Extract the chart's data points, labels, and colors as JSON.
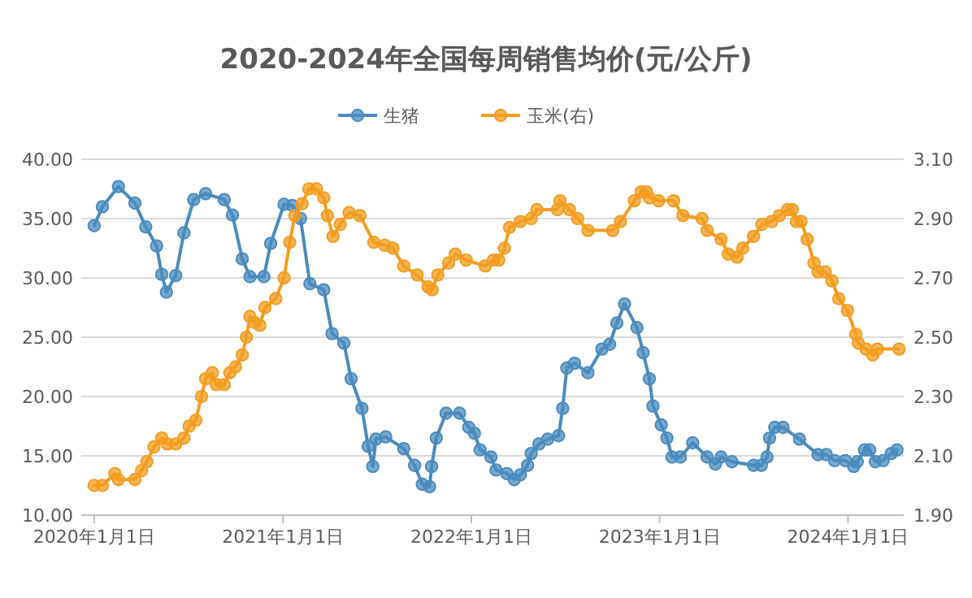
{
  "chart_data": {
    "type": "line",
    "title": "2020-2024年全国每周销售均价(元/公斤)",
    "xlim": [
      "2019-12-07",
      "2024-04-18"
    ],
    "xticks": [
      {
        "value": "2020-01-01",
        "label": "2020年1月1日"
      },
      {
        "value": "2021-01-01",
        "label": "2021年1月1日"
      },
      {
        "value": "2022-01-01",
        "label": "2022年1月1日"
      },
      {
        "value": "2023-01-01",
        "label": "2023年1月1日"
      },
      {
        "value": "2024-01-01",
        "label": "2024年1月1日"
      }
    ],
    "ylim": [
      10,
      40
    ],
    "yticks": [
      {
        "value": 10,
        "label": "10.00"
      },
      {
        "value": 15,
        "label": "15.00"
      },
      {
        "value": 20,
        "label": "20.00"
      },
      {
        "value": 25,
        "label": "25.00"
      },
      {
        "value": 30,
        "label": "30.00"
      },
      {
        "value": 35,
        "label": "35.00"
      },
      {
        "value": 40,
        "label": "40.00"
      }
    ],
    "y2lim": [
      1.9,
      3.1
    ],
    "y2ticks": [
      {
        "value": 1.9,
        "label": "1.90"
      },
      {
        "value": 2.1,
        "label": "2.10"
      },
      {
        "value": 2.3,
        "label": "2.30"
      },
      {
        "value": 2.5,
        "label": "2.50"
      },
      {
        "value": 2.7,
        "label": "2.70"
      },
      {
        "value": 2.9,
        "label": "2.90"
      },
      {
        "value": 3.1,
        "label": "3.10"
      }
    ],
    "grid": "y",
    "legend": "top",
    "marker": "circle",
    "line_style": "solid",
    "series": [
      {
        "name": "生猪",
        "color": "#4a8bbd",
        "x": [
          "2020-01-01",
          "2020-01-17",
          "2020-02-17",
          "2020-03-20",
          "2020-04-10",
          "2020-05-01",
          "2020-05-11",
          "2020-05-20",
          "2020-06-07",
          "2020-06-23",
          "2020-07-12",
          "2020-08-04",
          "2020-09-09",
          "2020-09-25",
          "2020-10-14",
          "2020-10-29",
          "2020-11-25",
          "2020-12-08",
          "2021-01-03",
          "2021-01-19",
          "2021-02-04",
          "2021-02-22",
          "2021-03-21",
          "2021-04-06",
          "2021-04-29",
          "2021-05-13",
          "2021-06-03",
          "2021-06-15",
          "2021-06-24",
          "2021-06-30",
          "2021-07-19",
          "2021-08-23",
          "2021-09-13",
          "2021-09-28",
          "2021-10-12",
          "2021-10-16",
          "2021-10-25",
          "2021-11-13",
          "2021-12-09",
          "2021-12-27",
          "2022-01-07",
          "2022-01-18",
          "2022-02-08",
          "2022-02-18",
          "2022-03-11",
          "2022-03-25",
          "2022-04-06",
          "2022-04-20",
          "2022-04-27",
          "2022-05-12",
          "2022-05-29",
          "2022-06-19",
          "2022-06-27",
          "2022-07-05",
          "2022-07-20",
          "2022-08-15",
          "2022-09-11",
          "2022-09-26",
          "2022-10-10",
          "2022-10-25",
          "2022-11-18",
          "2022-11-30",
          "2022-12-12",
          "2022-12-19",
          "2023-01-04",
          "2023-01-15",
          "2023-01-25",
          "2023-02-10",
          "2023-03-06",
          "2023-04-03",
          "2023-04-19",
          "2023-04-30",
          "2023-05-21",
          "2023-07-02",
          "2023-07-17",
          "2023-07-28",
          "2023-08-02",
          "2023-08-12",
          "2023-08-28",
          "2023-09-29",
          "2023-11-04",
          "2023-11-20",
          "2023-12-06",
          "2023-12-27",
          "2024-01-12",
          "2024-01-19",
          "2024-02-02",
          "2024-02-12",
          "2024-02-23",
          "2024-03-09",
          "2024-03-25",
          "2024-04-05"
        ],
        "values": [
          34.4,
          36.0,
          37.7,
          36.3,
          34.3,
          32.7,
          30.3,
          28.8,
          30.2,
          33.8,
          36.6,
          37.1,
          36.6,
          35.3,
          31.6,
          30.1,
          30.1,
          32.9,
          36.2,
          36.1,
          35.0,
          29.5,
          29.0,
          25.3,
          24.5,
          21.5,
          19.0,
          15.8,
          14.1,
          16.4,
          16.6,
          15.6,
          14.2,
          12.6,
          12.4,
          14.1,
          16.5,
          18.6,
          18.6,
          17.4,
          16.9,
          15.5,
          14.9,
          13.8,
          13.5,
          13.0,
          13.4,
          14.2,
          15.2,
          16.0,
          16.4,
          16.7,
          19.0,
          22.4,
          22.8,
          22.0,
          24.0,
          24.4,
          26.2,
          27.8,
          25.8,
          23.7,
          21.5,
          19.2,
          17.6,
          16.5,
          14.9,
          14.9,
          16.1,
          14.9,
          14.3,
          14.9,
          14.5,
          14.2,
          14.2,
          14.9,
          16.5,
          17.4,
          17.4,
          16.4,
          15.1,
          15.1,
          14.6,
          14.6,
          14.1,
          14.5,
          15.5,
          15.5,
          14.5,
          14.6,
          15.2,
          15.5
        ]
      },
      {
        "name": "玉米(右)",
        "color": "#f39c1f",
        "axis": "y2",
        "x": [
          "2020-01-01",
          "2020-01-17",
          "2020-02-10",
          "2020-02-17",
          "2020-03-20",
          "2020-04-02",
          "2020-04-12",
          "2020-04-26",
          "2020-05-11",
          "2020-05-22",
          "2020-06-07",
          "2020-06-23",
          "2020-07-03",
          "2020-07-16",
          "2020-07-27",
          "2020-08-04",
          "2020-08-17",
          "2020-08-25",
          "2020-09-09",
          "2020-09-20",
          "2020-10-01",
          "2020-10-14",
          "2020-10-22",
          "2020-10-29",
          "2020-11-06",
          "2020-11-17",
          "2020-11-27",
          "2020-12-18",
          "2021-01-03",
          "2021-01-14",
          "2021-01-24",
          "2021-02-07",
          "2021-02-20",
          "2021-03-07",
          "2021-03-21",
          "2021-03-28",
          "2021-04-08",
          "2021-04-22",
          "2021-05-09",
          "2021-05-30",
          "2021-06-26",
          "2021-07-17",
          "2021-08-02",
          "2021-08-23",
          "2021-09-18",
          "2021-10-09",
          "2021-10-17",
          "2021-10-28",
          "2021-11-18",
          "2021-12-01",
          "2021-12-22",
          "2022-01-28",
          "2022-02-13",
          "2022-02-23",
          "2022-03-06",
          "2022-03-16",
          "2022-04-06",
          "2022-04-27",
          "2022-05-08",
          "2022-06-17",
          "2022-06-22",
          "2022-07-10",
          "2022-07-26",
          "2022-08-15",
          "2022-10-02",
          "2022-10-17",
          "2022-11-13",
          "2022-11-26",
          "2022-12-06",
          "2022-12-12",
          "2022-12-30",
          "2023-01-28",
          "2023-02-15",
          "2023-03-24",
          "2023-04-03",
          "2023-04-30",
          "2023-05-14",
          "2023-05-31",
          "2023-06-11",
          "2023-07-02",
          "2023-07-18",
          "2023-08-06",
          "2023-08-21",
          "2023-09-06",
          "2023-09-15",
          "2023-09-23",
          "2023-10-02",
          "2023-10-14",
          "2023-10-27",
          "2023-11-04",
          "2023-11-18",
          "2023-12-01",
          "2023-12-14",
          "2023-12-31",
          "2024-01-16",
          "2024-01-21",
          "2024-02-05",
          "2024-02-18",
          "2024-02-27",
          "2024-04-09"
        ],
        "values": [
          2.0,
          2.0,
          2.04,
          2.02,
          2.02,
          2.05,
          2.08,
          2.13,
          2.16,
          2.14,
          2.14,
          2.16,
          2.2,
          2.22,
          2.3,
          2.36,
          2.38,
          2.34,
          2.34,
          2.38,
          2.4,
          2.44,
          2.5,
          2.57,
          2.55,
          2.54,
          2.6,
          2.63,
          2.7,
          2.82,
          2.91,
          2.95,
          3.0,
          3.0,
          2.97,
          2.91,
          2.84,
          2.88,
          2.92,
          2.91,
          2.82,
          2.81,
          2.8,
          2.74,
          2.71,
          2.67,
          2.66,
          2.71,
          2.75,
          2.78,
          2.76,
          2.74,
          2.76,
          2.76,
          2.8,
          2.87,
          2.89,
          2.9,
          2.93,
          2.93,
          2.96,
          2.93,
          2.9,
          2.86,
          2.86,
          2.89,
          2.96,
          2.99,
          2.99,
          2.97,
          2.96,
          2.96,
          2.91,
          2.9,
          2.86,
          2.83,
          2.78,
          2.77,
          2.8,
          2.84,
          2.88,
          2.89,
          2.91,
          2.93,
          2.93,
          2.89,
          2.89,
          2.83,
          2.75,
          2.72,
          2.72,
          2.69,
          2.63,
          2.59,
          2.51,
          2.48,
          2.46,
          2.44,
          2.46,
          2.46
        ]
      }
    ]
  }
}
